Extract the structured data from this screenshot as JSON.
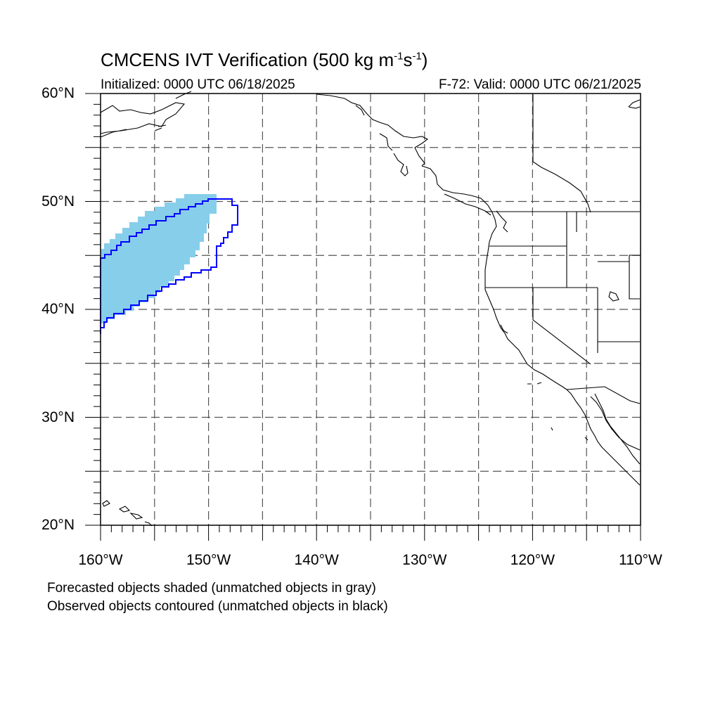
{
  "header": {
    "title_main": "CMCENS IVT Verification (500 kg m",
    "title_exp1": "-1",
    "title_mid": "s",
    "title_exp2": "-1",
    "title_end": ")",
    "initialized": "Initialized: 0000 UTC 06/18/2025",
    "valid": "F-72: Valid: 0000 UTC 06/21/2025"
  },
  "map": {
    "lon_range": [
      -160,
      -110
    ],
    "lat_range": [
      20,
      60
    ],
    "gridline_style": "dashed",
    "lat_labels": [
      {
        "value": 60,
        "text": "60°N"
      },
      {
        "value": 50,
        "text": "50°N"
      },
      {
        "value": 40,
        "text": "40°N"
      },
      {
        "value": 30,
        "text": "30°N"
      },
      {
        "value": 20,
        "text": "20°N"
      }
    ],
    "lon_labels": [
      {
        "value": -160,
        "text": "160°W"
      },
      {
        "value": -150,
        "text": "150°W"
      },
      {
        "value": -140,
        "text": "140°W"
      },
      {
        "value": -130,
        "text": "130°W"
      },
      {
        "value": -120,
        "text": "120°W"
      },
      {
        "value": -110,
        "text": "110°W"
      }
    ],
    "colors": {
      "forecast_fill": "#87ceeb",
      "observed_contour": "#0000ff",
      "coastline": "#000000",
      "grid": "#555555"
    }
  },
  "notes": {
    "line1": "Forecasted objects shaded (unmatched objects in gray)",
    "line2": "Observed objects contoured (unmatched objects in black)"
  }
}
